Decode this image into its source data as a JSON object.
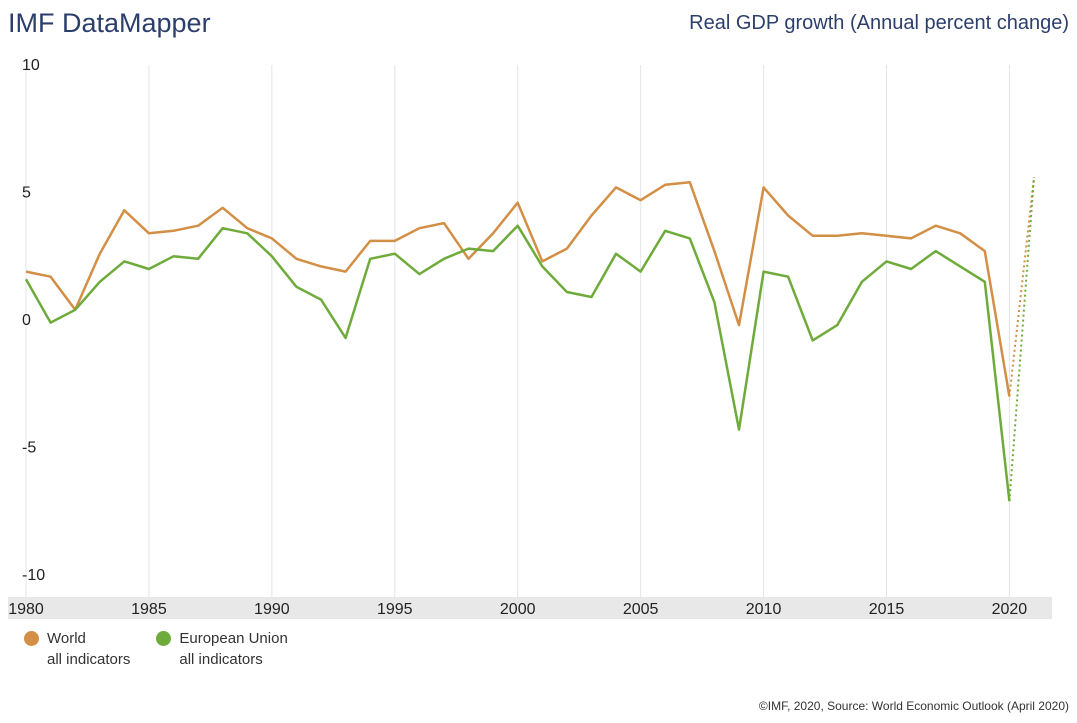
{
  "header": {
    "brand": "IMF DataMapper",
    "indicator_title": "Real GDP growth (Annual percent change)"
  },
  "footer": {
    "source": "©IMF, 2020, Source: World Economic Outlook (April 2020)"
  },
  "colors": {
    "world": "#d28f45",
    "eu": "#6fab3b",
    "grid": "#e4e4e4",
    "axis_band": "#e8e8e8"
  },
  "chart_data": {
    "type": "line",
    "xlim": [
      1980,
      2021
    ],
    "ylim": [
      -10,
      10
    ],
    "x_ticks": [
      1980,
      1985,
      1990,
      1995,
      2000,
      2005,
      2010,
      2015,
      2020
    ],
    "y_ticks": [
      10,
      5,
      0,
      -5,
      -10
    ],
    "grid": "vertical",
    "legend_position": "bottom-left",
    "series": [
      {
        "name": "World",
        "subtitle": "all indicators",
        "color": "#d28f45",
        "x": [
          1980,
          1981,
          1982,
          1983,
          1984,
          1985,
          1986,
          1987,
          1988,
          1989,
          1990,
          1991,
          1992,
          1993,
          1994,
          1995,
          1996,
          1997,
          1998,
          1999,
          2000,
          2001,
          2002,
          2003,
          2004,
          2005,
          2006,
          2007,
          2008,
          2009,
          2010,
          2011,
          2012,
          2013,
          2014,
          2015,
          2016,
          2017,
          2018,
          2019,
          2020
        ],
        "values": [
          1.9,
          1.7,
          0.4,
          2.6,
          4.3,
          3.4,
          3.5,
          3.7,
          4.4,
          3.6,
          3.2,
          2.4,
          2.1,
          1.9,
          3.1,
          3.1,
          3.6,
          3.8,
          2.4,
          3.4,
          4.6,
          2.3,
          2.8,
          4.1,
          5.2,
          4.7,
          5.3,
          5.4,
          2.7,
          -0.2,
          5.2,
          4.1,
          3.3,
          3.3,
          3.4,
          3.3,
          3.2,
          3.7,
          3.4,
          2.7,
          -3.0
        ],
        "projection": {
          "x": [
            2020,
            2021
          ],
          "values": [
            -3.0,
            5.6
          ]
        }
      },
      {
        "name": "European Union",
        "subtitle": "all indicators",
        "color": "#6fab3b",
        "x": [
          1980,
          1981,
          1982,
          1983,
          1984,
          1985,
          1986,
          1987,
          1988,
          1989,
          1990,
          1991,
          1992,
          1993,
          1994,
          1995,
          1996,
          1997,
          1998,
          1999,
          2000,
          2001,
          2002,
          2003,
          2004,
          2005,
          2006,
          2007,
          2008,
          2009,
          2010,
          2011,
          2012,
          2013,
          2014,
          2015,
          2016,
          2017,
          2018,
          2019,
          2020
        ],
        "values": [
          1.6,
          -0.1,
          0.4,
          1.5,
          2.3,
          2.0,
          2.5,
          2.4,
          3.6,
          3.4,
          2.5,
          1.3,
          0.8,
          -0.7,
          2.4,
          2.6,
          1.8,
          2.4,
          2.8,
          2.7,
          3.7,
          2.1,
          1.1,
          0.9,
          2.6,
          1.9,
          3.5,
          3.2,
          0.7,
          -4.3,
          1.9,
          1.7,
          -0.8,
          -0.2,
          1.5,
          2.3,
          2.0,
          2.7,
          2.1,
          1.5,
          -7.1
        ],
        "projection": {
          "x": [
            2020,
            2021
          ],
          "values": [
            -7.1,
            5.6
          ]
        }
      }
    ]
  }
}
